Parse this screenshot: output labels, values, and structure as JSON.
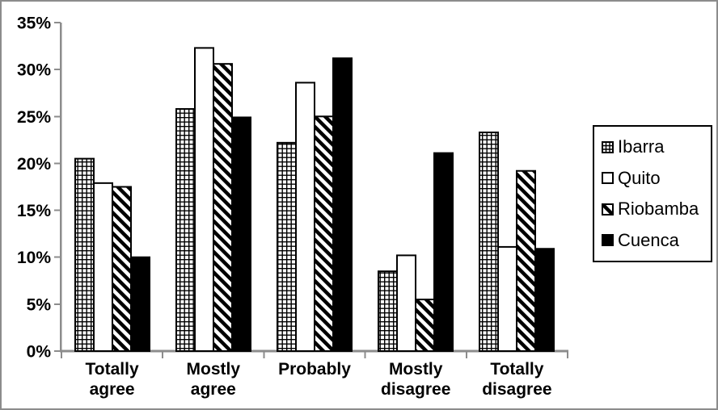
{
  "window": {
    "background": "#FFFFFF",
    "border_color": "#8C8C8C"
  },
  "chart_data": {
    "type": "bar",
    "title": "",
    "xlabel": "",
    "ylabel": "",
    "categories": [
      "Totally agree",
      "Mostly agree",
      "Probably",
      "Mostly disagree",
      "Totally disagree"
    ],
    "category_label_lines": [
      [
        "Totally",
        "agree"
      ],
      [
        "Mostly",
        "agree"
      ],
      [
        "Probably"
      ],
      [
        "Mostly",
        "disagree"
      ],
      [
        "Totally",
        "disagree"
      ]
    ],
    "series": [
      {
        "name": "Ibarra",
        "pattern": "grid",
        "values": [
          20.5,
          25.8,
          22.2,
          8.5,
          23.3
        ]
      },
      {
        "name": "Quito",
        "pattern": "solid-white",
        "values": [
          17.9,
          32.3,
          28.6,
          10.2,
          11.1
        ]
      },
      {
        "name": "Riobamba",
        "pattern": "diagonal-stripes",
        "values": [
          17.5,
          30.6,
          25.0,
          5.5,
          19.2
        ]
      },
      {
        "name": "Cuenca",
        "pattern": "solid-black",
        "values": [
          10.0,
          24.9,
          31.2,
          21.1,
          10.9
        ]
      }
    ],
    "ylim": [
      0,
      35
    ],
    "ytick_step": 5,
    "ytick_labels": [
      "0%",
      "5%",
      "10%",
      "15%",
      "20%",
      "25%",
      "30%",
      "35%"
    ],
    "grid": false,
    "legend_position": "right",
    "colors": {
      "axis": "#8C8C8C",
      "bar_outline": "#000000",
      "pattern_ink": "#000000",
      "text": "#000000",
      "legend_border": "#000000"
    }
  }
}
